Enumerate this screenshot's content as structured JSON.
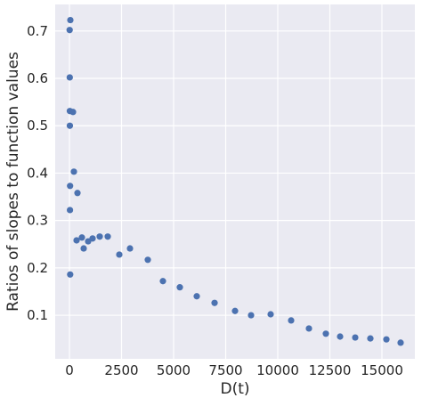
{
  "chart_data": {
    "type": "scatter",
    "xlabel": "D(t)",
    "ylabel": "Ratios of slopes to function values",
    "color": "#4c72b0",
    "grid": true,
    "xlim": [
      -684,
      16581
    ],
    "ylim": [
      0.008,
      0.756
    ],
    "xticks": [
      0,
      2500,
      5000,
      7500,
      10000,
      12500,
      15000
    ],
    "yticks": [
      0.1,
      0.2,
      0.3,
      0.4,
      0.5,
      0.6,
      0.7
    ],
    "x": [
      43,
      10,
      15,
      20,
      171,
      20,
      214,
      30,
      385,
      25,
      342,
      598,
      684,
      897,
      1111,
      1453,
      1838,
      35,
      2393,
      2906,
      3761,
      4487,
      5299,
      6111,
      6966,
      7949,
      8718,
      9658,
      10641,
      11496,
      12308,
      12991,
      13718,
      14444,
      15214,
      15897
    ],
    "y": [
      0.723,
      0.702,
      0.602,
      0.531,
      0.529,
      0.5,
      0.403,
      0.373,
      0.358,
      0.322,
      0.258,
      0.264,
      0.241,
      0.256,
      0.262,
      0.266,
      0.266,
      0.186,
      0.228,
      0.241,
      0.217,
      0.172,
      0.159,
      0.14,
      0.126,
      0.109,
      0.1,
      0.102,
      0.089,
      0.072,
      0.061,
      0.055,
      0.053,
      0.051,
      0.049,
      0.042
    ]
  }
}
